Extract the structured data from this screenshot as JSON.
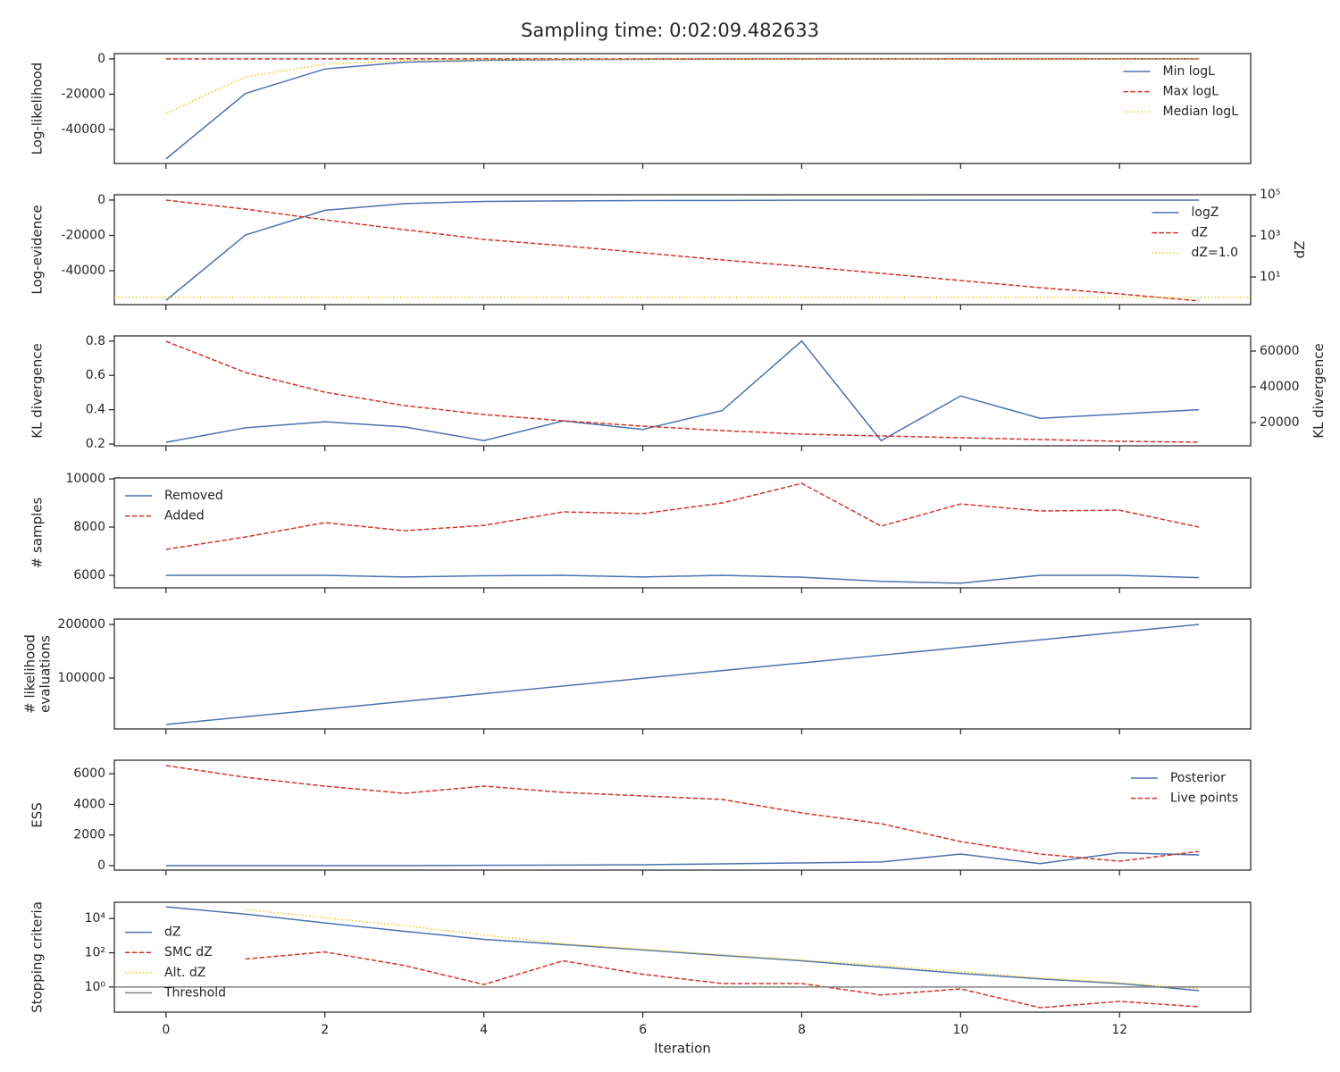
{
  "title": "Sampling time: 0:02:09.482633",
  "sharex": true,
  "chart_data": [
    {
      "type": "line",
      "ylabel": "Log-likelihood",
      "x": [
        0,
        1,
        2,
        3,
        4,
        5,
        6,
        7,
        8,
        9,
        10,
        11,
        12,
        13
      ],
      "xlim": [
        -0.65,
        13.65
      ],
      "xticks": [
        0,
        2,
        4,
        6,
        8,
        10,
        12
      ],
      "ylim": [
        -59300,
        3000
      ],
      "yticks": [
        -40000,
        -20000,
        0
      ],
      "legend": "upper right",
      "series": [
        {
          "name": "Min logL",
          "color": "#4c72b0",
          "linestyle": "solid",
          "values": [
            -56700,
            -19600,
            -5700,
            -1900,
            -800,
            -400,
            -200,
            -100,
            -60,
            -40,
            -20,
            -10,
            -5,
            -2
          ]
        },
        {
          "name": "Max logL",
          "color": "#d1352b",
          "linestyle": "dashed",
          "values": [
            0,
            0,
            0,
            0,
            0,
            0,
            0,
            0,
            0,
            0,
            0,
            0,
            0,
            0
          ]
        },
        {
          "name": "Median logL",
          "color": "#f5c518",
          "linestyle": "dotted",
          "values": [
            -30900,
            -10200,
            -3000,
            -1000,
            -500,
            -250,
            -120,
            -60,
            -30,
            -20,
            -10,
            -5,
            -3,
            -1
          ]
        }
      ]
    },
    {
      "type": "line",
      "ylabel": "Log-evidence",
      "y2label": "dZ",
      "x": [
        0,
        1,
        2,
        3,
        4,
        5,
        6,
        7,
        8,
        9,
        10,
        11,
        12,
        13
      ],
      "xlim": [
        -0.65,
        13.65
      ],
      "xticks": [
        0,
        2,
        4,
        6,
        8,
        10,
        12
      ],
      "ylim": [
        -59200,
        3000
      ],
      "yticks": [
        -40000,
        -20000,
        0
      ],
      "y2lim": [
        0.45,
        100000
      ],
      "y2scale": "log",
      "y2ticks": [
        {
          "value": 10,
          "label": "10¹"
        },
        {
          "value": 1000,
          "label": "10³"
        },
        {
          "value": 100000,
          "label": "10⁵"
        }
      ],
      "legend": "upper right",
      "series": [
        {
          "name": "logZ",
          "color": "#4c72b0",
          "linestyle": "solid",
          "values": [
            -56800,
            -19800,
            -5800,
            -2000,
            -800,
            -500,
            -300,
            -200,
            -100,
            -80,
            -60,
            -50,
            -40,
            -30
          ]
        },
        {
          "name": "dZ",
          "color": "#d1352b",
          "linestyle": "dashed",
          "axis": "y2",
          "values": [
            55000,
            20000,
            6000,
            2000,
            670,
            330,
            150,
            67,
            33,
            15,
            6.7,
            3,
            1.5,
            0.68
          ]
        },
        {
          "name": "dZ=1.0",
          "color": "#f5c518",
          "linestyle": "dotted",
          "axis": "y2",
          "hline": 1.0
        }
      ]
    },
    {
      "type": "line",
      "ylabel": "KL divergence",
      "y2label": "KL divergence",
      "x": [
        0,
        1,
        2,
        3,
        4,
        5,
        6,
        7,
        8,
        9,
        10,
        11,
        12,
        13
      ],
      "xlim": [
        -0.65,
        13.65
      ],
      "xticks": [
        0,
        2,
        4,
        6,
        8,
        10,
        12
      ],
      "ylim": [
        0.19,
        0.83
      ],
      "yticks": [
        0.2,
        0.4,
        0.6,
        0.8
      ],
      "y2lim": [
        7000,
        68500
      ],
      "y2ticks": [
        20000,
        40000,
        60000
      ],
      "series": [
        {
          "color": "#4c72b0",
          "linestyle": "solid",
          "values": [
            0.21,
            0.295,
            0.33,
            0.3,
            0.22,
            0.335,
            0.285,
            0.395,
            0.8,
            0.22,
            0.48,
            0.35,
            0.375,
            0.4
          ]
        },
        {
          "color": "#d1352b",
          "linestyle": "dashed",
          "axis": "y2",
          "values": [
            65500,
            48000,
            37000,
            29500,
            24500,
            21000,
            18000,
            15500,
            13500,
            12500,
            11500,
            10500,
            9500,
            9000
          ]
        }
      ]
    },
    {
      "type": "line",
      "ylabel": "# samples",
      "x": [
        0,
        1,
        2,
        3,
        4,
        5,
        6,
        7,
        8,
        9,
        10,
        11,
        12,
        13
      ],
      "xlim": [
        -0.65,
        13.65
      ],
      "xticks": [
        0,
        2,
        4,
        6,
        8,
        10,
        12
      ],
      "ylim": [
        5480,
        10040
      ],
      "yticks": [
        6000,
        8000,
        10000
      ],
      "legend": "upper left",
      "series": [
        {
          "name": "Removed",
          "color": "#4c72b0",
          "linestyle": "solid",
          "values": [
            6000,
            6000,
            6000,
            5930,
            5980,
            6000,
            5930,
            6000,
            5920,
            5750,
            5670,
            6000,
            6000,
            5900
          ]
        },
        {
          "name": "Added",
          "color": "#d1352b",
          "linestyle": "dashed",
          "values": [
            7075,
            7590,
            8185,
            7850,
            8070,
            8630,
            8560,
            9000,
            9815,
            8040,
            8960,
            8670,
            8700,
            8000
          ]
        }
      ]
    },
    {
      "type": "line",
      "ylabel": "# likelihood\nevaluations",
      "x": [
        0,
        1,
        2,
        3,
        4,
        5,
        6,
        7,
        8,
        9,
        10,
        11,
        12,
        13
      ],
      "xlim": [
        -0.65,
        13.65
      ],
      "xticks": [
        0,
        2,
        4,
        6,
        8,
        10,
        12
      ],
      "ylim": [
        5000,
        210000
      ],
      "yticks": [
        100000,
        200000
      ],
      "series": [
        {
          "color": "#4c72b0",
          "linestyle": "solid",
          "values": [
            13300,
            27700,
            42000,
            56400,
            70800,
            85100,
            99500,
            113900,
            128200,
            142600,
            157000,
            171300,
            185700,
            200000
          ]
        }
      ]
    },
    {
      "type": "line",
      "ylabel": "ESS",
      "x": [
        0,
        1,
        2,
        3,
        4,
        5,
        6,
        7,
        8,
        9,
        10,
        11,
        12,
        13
      ],
      "xlim": [
        -0.65,
        13.65
      ],
      "xticks": [
        0,
        2,
        4,
        6,
        8,
        10,
        12
      ],
      "ylim": [
        -290,
        6880
      ],
      "yticks": [
        0,
        2000,
        4000,
        6000
      ],
      "legend": "upper right",
      "series": [
        {
          "name": "Posterior",
          "color": "#4c72b0",
          "linestyle": "solid",
          "values": [
            0,
            0,
            0,
            5,
            20,
            40,
            60,
            120,
            180,
            240,
            760,
            130,
            840,
            700
          ]
        },
        {
          "name": "Live points",
          "color": "#d1352b",
          "linestyle": "dashed",
          "values": [
            6530,
            5770,
            5190,
            4720,
            5190,
            4780,
            4550,
            4320,
            3440,
            2740,
            1570,
            760,
            290,
            930
          ]
        }
      ]
    },
    {
      "type": "line",
      "ylabel": "Stopping criteria",
      "xlabel": "Iteration",
      "x": [
        0,
        1,
        2,
        3,
        4,
        5,
        6,
        7,
        8,
        9,
        10,
        11,
        12,
        13
      ],
      "xlim": [
        -0.65,
        13.65
      ],
      "xticks": [
        0,
        2,
        4,
        6,
        8,
        10,
        12
      ],
      "ylim": [
        0.034,
        89000
      ],
      "yscale": "log",
      "yticks": [
        {
          "value": 1,
          "label": "10⁰"
        },
        {
          "value": 100,
          "label": "10²"
        },
        {
          "value": 10000,
          "label": "10⁴"
        }
      ],
      "legend": "center left",
      "series": [
        {
          "name": "dZ",
          "color": "#4c72b0",
          "linestyle": "solid",
          "values": [
            48000,
            18000,
            5500,
            1800,
            610,
            300,
            145,
            70,
            34,
            14.5,
            6.2,
            3,
            1.6,
            0.62
          ]
        },
        {
          "name": "SMC dZ",
          "color": "#d1352b",
          "linestyle": "dashed",
          "values": [
            null,
            43,
            112,
            18,
            1.4,
            34,
            5.5,
            1.6,
            1.6,
            0.34,
            0.78,
            0.062,
            0.145,
            0.07
          ]
        },
        {
          "name": "Alt. dZ",
          "color": "#f5c518",
          "linestyle": "dotted",
          "values": [
            null,
            34000,
            11000,
            3800,
            1100,
            340,
            160,
            78,
            38,
            18,
            7.8,
            3.4,
            1.8,
            0.8
          ]
        },
        {
          "name": "Threshold",
          "color": "#808080",
          "linestyle": "solid",
          "hline": 1.0
        }
      ]
    }
  ]
}
